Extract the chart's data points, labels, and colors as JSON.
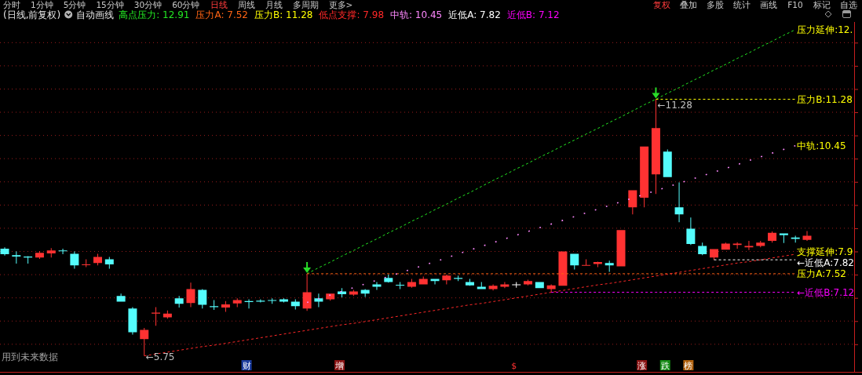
{
  "chart_data": [
    {
      "type": "other",
      "annotations": [
        "分时",
        "1分钟",
        "5分钟",
        "15分钟",
        "30分钟",
        "60分钟",
        "日线",
        "周线",
        "月线",
        "多周期",
        "更多>",
        "复权",
        "叠加",
        "多股",
        "统计",
        "画线",
        "F10",
        "标记",
        "自选"
      ]
    },
    {
      "type": "candlestick",
      "title": "(日线,前复权)",
      "legend_title": "自动画线",
      "categories": [
        null,
        null,
        null,
        null,
        null,
        null,
        null,
        null,
        null,
        null,
        null,
        null,
        null,
        null,
        null,
        null,
        null,
        null,
        null,
        null,
        null,
        null,
        null,
        null,
        null,
        null,
        null,
        null,
        null,
        null,
        null,
        null,
        null,
        null,
        null,
        null,
        null,
        null,
        null,
        null,
        null,
        null,
        null,
        null,
        null,
        null,
        null,
        null,
        null,
        null,
        null,
        null,
        null,
        null,
        null,
        null,
        null,
        null,
        null,
        null,
        null,
        null,
        null,
        null,
        null,
        null,
        null,
        null,
        null,
        null
      ],
      "ohlc": [
        [
          8.06,
          8.09,
          7.91,
          7.94
        ],
        [
          7.92,
          8.0,
          7.74,
          7.89
        ],
        [
          7.89,
          7.9,
          7.74,
          7.87
        ],
        [
          7.87,
          8.01,
          7.84,
          7.97
        ],
        [
          7.96,
          8.07,
          7.87,
          8.02
        ],
        [
          8.02,
          8.06,
          7.94,
          8.01
        ],
        [
          7.95,
          8.0,
          7.63,
          7.7
        ],
        [
          7.71,
          7.83,
          7.66,
          7.72
        ],
        [
          7.75,
          7.95,
          7.7,
          7.88
        ],
        [
          7.83,
          7.88,
          7.63,
          7.72
        ],
        [
          7.04,
          7.09,
          6.92,
          6.92
        ],
        [
          6.77,
          6.8,
          6.21,
          6.26
        ],
        [
          6.11,
          6.35,
          5.75,
          6.31
        ],
        [
          6.66,
          6.8,
          6.4,
          6.68
        ],
        [
          6.58,
          6.73,
          6.55,
          6.66
        ],
        [
          6.99,
          7.04,
          6.79,
          6.87
        ],
        [
          6.89,
          7.33,
          6.8,
          7.19
        ],
        [
          7.17,
          7.19,
          6.77,
          6.85
        ],
        [
          6.82,
          6.95,
          6.74,
          6.8
        ],
        [
          6.79,
          6.93,
          6.7,
          6.86
        ],
        [
          6.88,
          6.99,
          6.8,
          6.95
        ],
        [
          6.93,
          6.97,
          6.77,
          6.91
        ],
        [
          6.94,
          6.97,
          6.9,
          6.92
        ],
        [
          6.95,
          6.99,
          6.87,
          6.94
        ],
        [
          6.97,
          6.99,
          6.9,
          6.92
        ],
        [
          6.92,
          6.97,
          6.75,
          6.82
        ],
        [
          6.77,
          7.52,
          6.72,
          7.12
        ],
        [
          6.99,
          7.09,
          6.8,
          6.92
        ],
        [
          6.97,
          7.09,
          6.94,
          7.09
        ],
        [
          7.14,
          7.21,
          7.01,
          7.08
        ],
        [
          7.07,
          7.17,
          7.04,
          7.14
        ],
        [
          7.17,
          7.19,
          7.02,
          7.09
        ],
        [
          7.29,
          7.34,
          7.17,
          7.24
        ],
        [
          7.43,
          7.5,
          7.33,
          7.34
        ],
        [
          7.28,
          7.34,
          7.19,
          7.27
        ],
        [
          7.24,
          7.41,
          7.22,
          7.34
        ],
        [
          7.29,
          7.46,
          7.29,
          7.41
        ],
        [
          7.41,
          7.41,
          7.29,
          7.36
        ],
        [
          7.38,
          7.5,
          7.29,
          7.48
        ],
        [
          7.43,
          7.48,
          7.36,
          7.41
        ],
        [
          7.34,
          7.41,
          7.26,
          7.27
        ],
        [
          7.24,
          7.34,
          7.19,
          7.19
        ],
        [
          7.19,
          7.29,
          7.16,
          7.26
        ],
        [
          7.24,
          7.34,
          7.21,
          7.29
        ],
        [
          7.29,
          7.34,
          7.22,
          7.29
        ],
        [
          7.29,
          7.39,
          7.27,
          7.36
        ],
        [
          7.34,
          7.34,
          7.21,
          7.21
        ],
        [
          7.19,
          7.29,
          7.12,
          7.27
        ],
        [
          7.26,
          8.0,
          7.26,
          8.0
        ],
        [
          7.95,
          7.95,
          7.61,
          7.7
        ],
        [
          7.7,
          7.83,
          7.7,
          7.71
        ],
        [
          7.73,
          7.78,
          7.66,
          7.77
        ],
        [
          7.75,
          7.8,
          7.56,
          7.7
        ],
        [
          7.68,
          8.46,
          7.68,
          8.46
        ],
        [
          8.95,
          9.32,
          8.8,
          9.32
        ],
        [
          9.16,
          10.26,
          8.95,
          10.26
        ],
        [
          9.66,
          11.28,
          9.24,
          10.66
        ],
        [
          10.15,
          10.2,
          9.6,
          9.6
        ],
        [
          8.95,
          9.49,
          8.63,
          8.8
        ],
        [
          8.49,
          8.73,
          8.14,
          8.16
        ],
        [
          8.12,
          8.19,
          7.92,
          7.94
        ],
        [
          7.87,
          8.05,
          7.82,
          8.05
        ],
        [
          8.04,
          8.19,
          8.04,
          8.17
        ],
        [
          8.14,
          8.2,
          8.06,
          8.17
        ],
        [
          8.09,
          8.23,
          8.03,
          8.12
        ],
        [
          8.12,
          8.23,
          8.09,
          8.19
        ],
        [
          8.23,
          8.43,
          8.19,
          8.4
        ],
        [
          8.39,
          8.39,
          8.18,
          8.35
        ],
        [
          8.3,
          8.34,
          8.19,
          8.27
        ],
        [
          8.25,
          8.44,
          8.23,
          8.34
        ]
      ],
      "colors": [
        "#54fcfc",
        "#54fcfc",
        "#54fcfc",
        "#ff3232",
        "#ff3232",
        "#54fcfc",
        "#54fcfc",
        "#ff3232",
        "#ff3232",
        "#54fcfc",
        "#54fcfc",
        "#54fcfc",
        "#ff3232",
        "#ff3232",
        "#ff3232",
        "#54fcfc",
        "#ff3232",
        "#54fcfc",
        "#54fcfc",
        "#ff3232",
        "#ff3232",
        "#54fcfc",
        "#54fcfc",
        "#54fcfc",
        "#54fcfc",
        "#54fcfc",
        "#ff3232",
        "#54fcfc",
        "#ff3232",
        "#54fcfc",
        "#ff3232",
        "#54fcfc",
        "#54fcfc",
        "#54fcfc",
        "#54fcfc",
        "#ff3232",
        "#ff3232",
        "#54fcfc",
        "#ff3232",
        "#54fcfc",
        "#54fcfc",
        "#54fcfc",
        "#ff3232",
        "#ff3232",
        "#ffffff",
        "#ff3232",
        "#54fcfc",
        "#ff3232",
        "#ff3232",
        "#54fcfc",
        "#ff3232",
        "#ff3232",
        "#54fcfc",
        "#ff3232",
        "#ff3232",
        "#ff3232",
        "#ff3232",
        "#54fcfc",
        "#54fcfc",
        "#54fcfc",
        "#54fcfc",
        "#ff3232",
        "#ff3232",
        "#ff3232",
        "#ff3232",
        "#ff3232",
        "#ff3232",
        "#54fcfc",
        "#54fcfc",
        "#ff3232"
      ],
      "value_labels": [
        null,
        null,
        null,
        null,
        null,
        null,
        null,
        null,
        null,
        null,
        null,
        null,
        "←5.75",
        null,
        null,
        null,
        null,
        null,
        null,
        null,
        null,
        null,
        null,
        null,
        null,
        null,
        null,
        null,
        null,
        null,
        null,
        null,
        null,
        null,
        null,
        null,
        null,
        null,
        null,
        null,
        null,
        null,
        null,
        null,
        null,
        null,
        null,
        null,
        null,
        null,
        null,
        null,
        null,
        null,
        null,
        null,
        "←11.28",
        null,
        null,
        null,
        null,
        null,
        null,
        null,
        null,
        null,
        null,
        null,
        null,
        null
      ],
      "series": [
        {
          "type": "line",
          "name": "高点压力: 12.91",
          "color": "#22e622",
          "line_style": "dashed",
          "values": [
            null,
            null,
            null,
            null,
            null,
            null,
            null,
            null,
            null,
            null,
            null,
            null,
            null,
            null,
            null,
            null,
            null,
            null,
            null,
            null,
            null,
            null,
            null,
            null,
            null,
            null,
            7.52,
            7.65,
            7.77,
            7.9,
            8.02,
            8.15,
            8.27,
            8.4,
            8.52,
            8.65,
            8.77,
            8.9,
            9.02,
            9.15,
            9.27,
            9.4,
            9.53,
            9.65,
            9.78,
            9.9,
            10.03,
            10.15,
            10.28,
            10.4,
            10.53,
            10.65,
            10.78,
            10.9,
            11.03,
            11.16,
            11.28,
            11.41,
            11.53,
            11.66,
            11.78,
            11.91,
            12.03,
            12.16,
            12.28,
            12.41,
            12.53,
            12.66,
            12.78,
            null
          ]
        },
        {
          "type": "line",
          "name": "压力A: 7.52",
          "color": "#ff6414",
          "line_style": "dashed",
          "values": [
            null,
            null,
            null,
            null,
            null,
            null,
            null,
            null,
            null,
            null,
            null,
            null,
            null,
            null,
            null,
            null,
            null,
            null,
            null,
            null,
            null,
            null,
            null,
            null,
            null,
            null,
            7.52,
            7.52,
            7.52,
            7.52,
            7.52,
            7.52,
            7.52,
            7.52,
            7.52,
            7.52,
            7.52,
            7.52,
            7.52,
            7.52,
            7.52,
            7.52,
            7.52,
            7.52,
            7.52,
            7.52,
            7.52,
            7.52,
            7.52,
            7.52,
            7.52,
            7.52,
            7.52,
            7.52,
            7.52,
            7.52,
            7.52,
            7.52,
            7.52,
            7.52,
            7.52,
            7.52,
            7.52,
            7.52,
            7.52,
            7.52,
            7.52,
            7.52,
            7.52,
            null
          ]
        },
        {
          "type": "line",
          "name": "压力B: 11.28",
          "color": "#ffff00",
          "line_style": "dashed",
          "values": [
            null,
            null,
            null,
            null,
            null,
            null,
            null,
            null,
            null,
            null,
            null,
            null,
            null,
            null,
            null,
            null,
            null,
            null,
            null,
            null,
            null,
            null,
            null,
            null,
            null,
            null,
            null,
            null,
            null,
            null,
            null,
            null,
            null,
            null,
            null,
            null,
            null,
            null,
            null,
            null,
            null,
            null,
            null,
            null,
            null,
            null,
            null,
            null,
            null,
            null,
            null,
            null,
            null,
            null,
            null,
            null,
            11.28,
            11.28,
            11.28,
            11.28,
            11.28,
            11.28,
            11.28,
            11.28,
            11.28,
            11.28,
            11.28,
            11.28,
            11.28,
            null
          ]
        },
        {
          "type": "line",
          "name": "低点支撑: 7.98",
          "color": "#ff2828",
          "line_style": "dashed",
          "values": [
            null,
            null,
            null,
            null,
            null,
            null,
            null,
            null,
            null,
            null,
            null,
            null,
            5.75,
            5.79,
            5.83,
            5.87,
            5.91,
            5.95,
            5.98,
            6.02,
            6.06,
            6.1,
            6.14,
            6.18,
            6.22,
            6.26,
            6.3,
            6.34,
            6.38,
            6.42,
            6.45,
            6.49,
            6.53,
            6.57,
            6.61,
            6.65,
            6.69,
            6.73,
            6.77,
            6.81,
            6.85,
            6.88,
            6.92,
            6.96,
            7.0,
            7.04,
            7.08,
            7.12,
            7.16,
            7.2,
            7.24,
            7.28,
            7.31,
            7.35,
            7.39,
            7.43,
            7.47,
            7.51,
            7.55,
            7.59,
            7.63,
            7.67,
            7.71,
            7.75,
            7.78,
            7.82,
            7.86,
            7.9,
            7.94,
            null
          ]
        },
        {
          "type": "line",
          "name": "中轨: 10.45",
          "color": "#ff88ff",
          "line_style": "dotted",
          "values": [
            null,
            null,
            null,
            null,
            null,
            null,
            null,
            null,
            null,
            null,
            null,
            null,
            null,
            null,
            null,
            null,
            null,
            null,
            null,
            null,
            null,
            null,
            null,
            null,
            null,
            null,
            6.9,
            6.98,
            7.06,
            7.14,
            7.22,
            7.3,
            7.38,
            7.46,
            7.54,
            7.62,
            7.7,
            7.78,
            7.86,
            7.95,
            8.03,
            8.11,
            8.19,
            8.27,
            8.35,
            8.43,
            8.51,
            8.59,
            8.67,
            8.75,
            8.83,
            8.91,
            8.99,
            9.07,
            9.15,
            9.23,
            9.31,
            9.39,
            9.47,
            9.55,
            9.63,
            9.71,
            9.79,
            9.87,
            9.96,
            10.04,
            10.12,
            10.2,
            10.28,
            null
          ]
        },
        {
          "type": "line",
          "name": "近低A: 7.82",
          "color": "#ffffff",
          "line_style": "dashed",
          "values": [
            null,
            null,
            null,
            null,
            null,
            null,
            null,
            null,
            null,
            null,
            null,
            null,
            null,
            null,
            null,
            null,
            null,
            null,
            null,
            null,
            null,
            null,
            null,
            null,
            null,
            null,
            null,
            null,
            null,
            null,
            null,
            null,
            null,
            null,
            null,
            null,
            null,
            null,
            null,
            null,
            null,
            null,
            null,
            null,
            null,
            null,
            null,
            null,
            null,
            null,
            null,
            null,
            null,
            null,
            null,
            null,
            null,
            null,
            null,
            null,
            null,
            7.82,
            7.82,
            7.82,
            7.82,
            7.82,
            7.82,
            7.82,
            7.82,
            null
          ]
        },
        {
          "type": "line",
          "name": "近低B: 7.12",
          "color": "#ff00ff",
          "line_style": "dashed",
          "values": [
            null,
            null,
            null,
            null,
            null,
            null,
            null,
            null,
            null,
            null,
            null,
            null,
            null,
            null,
            null,
            null,
            null,
            null,
            null,
            null,
            null,
            null,
            null,
            null,
            null,
            null,
            null,
            null,
            null,
            null,
            null,
            null,
            null,
            null,
            null,
            null,
            null,
            null,
            null,
            null,
            null,
            null,
            null,
            null,
            null,
            null,
            null,
            7.12,
            7.12,
            7.12,
            7.12,
            7.12,
            7.12,
            7.12,
            7.12,
            7.12,
            7.12,
            7.12,
            7.12,
            7.12,
            7.12,
            7.12,
            7.12,
            7.12,
            7.12,
            7.12,
            7.12,
            7.12,
            7.12,
            null
          ]
        }
      ],
      "yticks": [
        {
          "value": 6,
          "label": null
        },
        {
          "value": 6.5,
          "label": null
        },
        {
          "value": 7,
          "label": null
        },
        {
          "value": 7.5,
          "label": null
        },
        {
          "value": 8,
          "label": null
        },
        {
          "value": 8.5,
          "label": null
        },
        {
          "value": 9,
          "label": null
        },
        {
          "value": 9.5,
          "label": null
        },
        {
          "value": 10,
          "label": null
        },
        {
          "value": 10.5,
          "label": null
        },
        {
          "value": 11,
          "label": null
        },
        {
          "value": 11.5,
          "label": null
        },
        {
          "value": 12,
          "label": null
        },
        {
          "value": 12.5,
          "label": null
        }
      ],
      "grid": "y",
      "legend": "top left",
      "annotations": [
        "用到未来数据",
        "财",
        "增",
        "$",
        "涨",
        "跌",
        "榜",
        "压力延伸:12.",
        "压力A:7.52",
        "压力B:11.28",
        "支撑延伸:7.9",
        "中轨:10.45",
        "←近低A:7.82",
        "←近低B:7.12"
      ]
    }
  ]
}
